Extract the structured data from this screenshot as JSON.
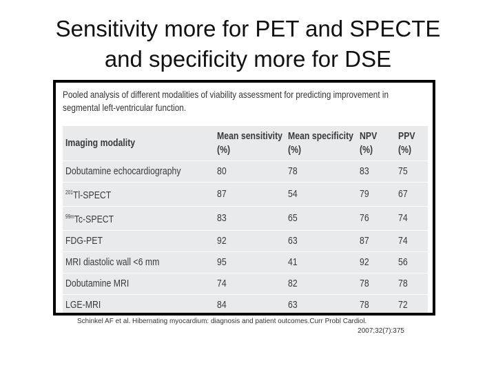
{
  "slide": {
    "title_line1": "Sensitivity more for PET and SPECTE",
    "title_line2": "and specificity more for DSE"
  },
  "figure": {
    "caption": "Pooled analysis of different modalities of viability assessment  for predicting improvement in segmental left-ventricular function.",
    "table": {
      "headers": {
        "modality": "Imaging modality",
        "sensitivity_1": "Mean sensitivity",
        "sensitivity_2": "(%)",
        "specificity_1": "Mean specificity",
        "specificity_2": "(%)",
        "npv_1": "NPV",
        "npv_2": "(%)",
        "ppv_1": "PPV",
        "ppv_2": "(%)"
      },
      "rows": [
        {
          "prefix": "",
          "sup": "",
          "name": "Dobutamine echocardiography",
          "sensitivity": "80",
          "specificity": "78",
          "npv": "83",
          "ppv": "75"
        },
        {
          "prefix": "",
          "sup": "201",
          "name": "Tl-SPECT",
          "sensitivity": "87",
          "specificity": "54",
          "npv": "79",
          "ppv": "67"
        },
        {
          "prefix": "",
          "sup": "99m",
          "name": "Tc-SPECT",
          "sensitivity": "83",
          "specificity": "65",
          "npv": "76",
          "ppv": "74"
        },
        {
          "prefix": "",
          "sup": "",
          "name": "FDG-PET",
          "sensitivity": "92",
          "specificity": "63",
          "npv": "87",
          "ppv": "74"
        },
        {
          "prefix": "",
          "sup": "",
          "name": "MRI diastolic wall <6 mm",
          "sensitivity": "95",
          "specificity": "41",
          "npv": "92",
          "ppv": "56"
        },
        {
          "prefix": "",
          "sup": "",
          "name": "Dobutamine MRI",
          "sensitivity": "74",
          "specificity": "82",
          "npv": "78",
          "ppv": "78"
        },
        {
          "prefix": "",
          "sup": "",
          "name": "LGE-MRI",
          "sensitivity": "84",
          "specificity": "63",
          "npv": "78",
          "ppv": "72"
        }
      ]
    }
  },
  "citation": {
    "line1": "Schinkel AF et al. Hibernating myocardium: diagnosis and patient outcomes.Curr  Probl Cardiol.",
    "line2": "2007;32(7):375"
  }
}
